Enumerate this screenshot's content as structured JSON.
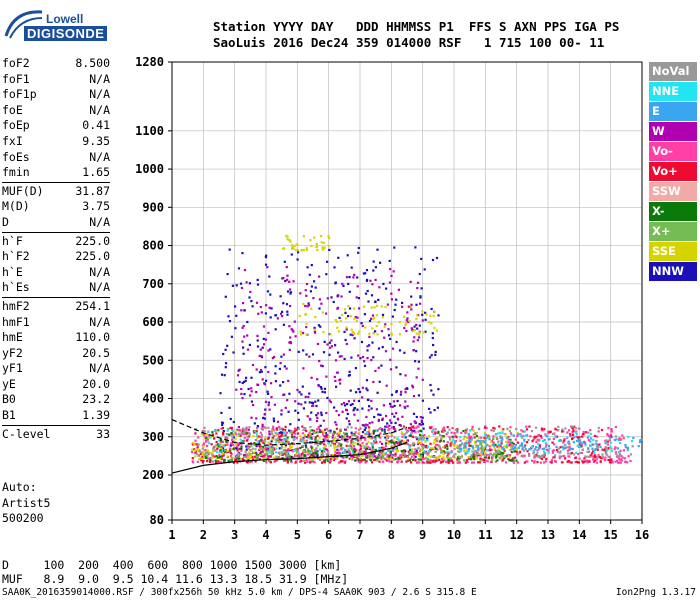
{
  "logo": {
    "brand": "Lowell",
    "product": "DIGISONDE"
  },
  "header": {
    "line1": "Station YYYY DAY   DDD HHMMSS P1  FFS S AXN PPS IGA PS",
    "line2": "SaoLuis 2016 Dec24 359 014000 RSF   1 715 100 00- 11"
  },
  "params": [
    {
      "name": "foF2",
      "value": "8.500"
    },
    {
      "name": "foF1",
      "value": "N/A"
    },
    {
      "name": "foF1p",
      "value": "N/A"
    },
    {
      "name": "foE",
      "value": "N/A"
    },
    {
      "name": "foEp",
      "value": "0.41"
    },
    {
      "name": "fxI",
      "value": "9.35"
    },
    {
      "name": "foEs",
      "value": "N/A"
    },
    {
      "name": "fmin",
      "value": "1.65"
    },
    {
      "name": "MUF(D)",
      "value": "31.87"
    },
    {
      "name": "M(D)",
      "value": "3.75"
    },
    {
      "name": "D",
      "value": "N/A"
    },
    {
      "name": "h`F",
      "value": "225.0"
    },
    {
      "name": "h`F2",
      "value": "225.0"
    },
    {
      "name": "h`E",
      "value": "N/A"
    },
    {
      "name": "h`Es",
      "value": "N/A"
    },
    {
      "name": "hmF2",
      "value": "254.1"
    },
    {
      "name": "hmF1",
      "value": "N/A"
    },
    {
      "name": "hmE",
      "value": "110.0"
    },
    {
      "name": "yF2",
      "value": "20.5"
    },
    {
      "name": "yF1",
      "value": "N/A"
    },
    {
      "name": "yE",
      "value": "20.0"
    },
    {
      "name": "B0",
      "value": "23.2"
    },
    {
      "name": "B1",
      "value": "1.39"
    },
    {
      "name": "C-level",
      "value": "33"
    }
  ],
  "auto": {
    "line1": "Auto:",
    "line2": "Artist5",
    "line3": "500200"
  },
  "legend": [
    {
      "label": "NoVal",
      "color": "#999999"
    },
    {
      "label": "NNE",
      "color": "#22e4f2"
    },
    {
      "label": "E",
      "color": "#3aa6f0"
    },
    {
      "label": "W",
      "color": "#b000b0"
    },
    {
      "label": "Vo-",
      "color": "#ff3fa6"
    },
    {
      "label": "Vo+",
      "color": "#ef0a32"
    },
    {
      "label": "SSW",
      "color": "#f2aaa8"
    },
    {
      "label": "X-",
      "color": "#0b7a0b"
    },
    {
      "label": "X+",
      "color": "#74bd55"
    },
    {
      "label": "SSE",
      "color": "#d6d400"
    },
    {
      "label": "NNW",
      "color": "#1a0fb8"
    }
  ],
  "chart_data": {
    "type": "scatter",
    "title": "",
    "xlabel": "",
    "ylabel": "",
    "x_ticks": [
      "1",
      "2",
      "3",
      "4",
      "5",
      "6",
      "7",
      "8",
      "9",
      "10",
      "11",
      "12",
      "13",
      "14",
      "15",
      "16"
    ],
    "y_ticks": [
      "80",
      "200",
      "300",
      "400",
      "500",
      "600",
      "700",
      "800",
      "900",
      "1000",
      "1100",
      "1280"
    ],
    "xlim": [
      1,
      16
    ],
    "ylim": [
      80,
      1280
    ],
    "grid": true,
    "y_scale": "nonlinear (compressed below 200 km, linear above)",
    "curves": [
      {
        "name": "profile",
        "x": [
          1,
          2,
          3,
          4,
          5,
          6,
          7,
          8,
          8.5
        ],
        "y": [
          205,
          225,
          235,
          240,
          243,
          248,
          253,
          270,
          285
        ]
      },
      {
        "name": "profile-dashed",
        "x": [
          1,
          2,
          3,
          4,
          5,
          6,
          7,
          8,
          8.5
        ],
        "y": [
          345,
          310,
          285,
          278,
          282,
          288,
          296,
          310,
          325
        ]
      }
    ],
    "clusters": [
      {
        "color": "#1a0fb8",
        "x_range": [
          2.5,
          9.5
        ],
        "y_range": [
          250,
          800
        ],
        "count": 500
      },
      {
        "color": "#b000b0",
        "x_range": [
          3,
          9
        ],
        "y_range": [
          250,
          750
        ],
        "count": 420
      },
      {
        "color": "#ff3fa6",
        "x_range": [
          1.6,
          15.6
        ],
        "y_range": [
          235,
          330
        ],
        "count": 700
      },
      {
        "color": "#ef0a32",
        "x_range": [
          1.6,
          15
        ],
        "y_range": [
          235,
          330
        ],
        "count": 450
      },
      {
        "color": "#d6d400",
        "x_range": [
          1.6,
          12
        ],
        "y_range": [
          245,
          320
        ],
        "count": 300
      },
      {
        "color": "#d6d400",
        "x_range": [
          4.5,
          6
        ],
        "y_range": [
          790,
          830
        ],
        "count": 40
      },
      {
        "color": "#d6d400",
        "x_range": [
          5,
          9.5
        ],
        "y_range": [
          570,
          650
        ],
        "count": 80
      },
      {
        "color": "#22e4f2",
        "x_range": [
          2,
          15.8
        ],
        "y_range": [
          260,
          320
        ],
        "count": 160
      },
      {
        "color": "#0b7a0b",
        "x_range": [
          2,
          12
        ],
        "y_range": [
          240,
          320
        ],
        "count": 180
      },
      {
        "color": "#74bd55",
        "x_range": [
          2,
          12
        ],
        "y_range": [
          240,
          320
        ],
        "count": 120
      },
      {
        "color": "#999999",
        "x_range": [
          1.6,
          15.8
        ],
        "y_range": [
          250,
          330
        ],
        "count": 260
      },
      {
        "color": "#3aa6f0",
        "x_range": [
          10,
          16
        ],
        "y_range": [
          270,
          310
        ],
        "count": 100
      }
    ]
  },
  "footer": {
    "d_line": "D     100  200  400  600  800 1000 1500 3000 [km]",
    "muf_line": "MUF   8.9  9.0  9.5 10.4 11.6 13.3 18.5 31.9 [MHz]",
    "credit": "SAA0K_2016359014000.RSF / 300fx256h 50 kHz 5.0 km / DPS-4 SAA0K 903 / 2.6 S 315.8 E",
    "version": "Ion2Png 1.3.17"
  }
}
